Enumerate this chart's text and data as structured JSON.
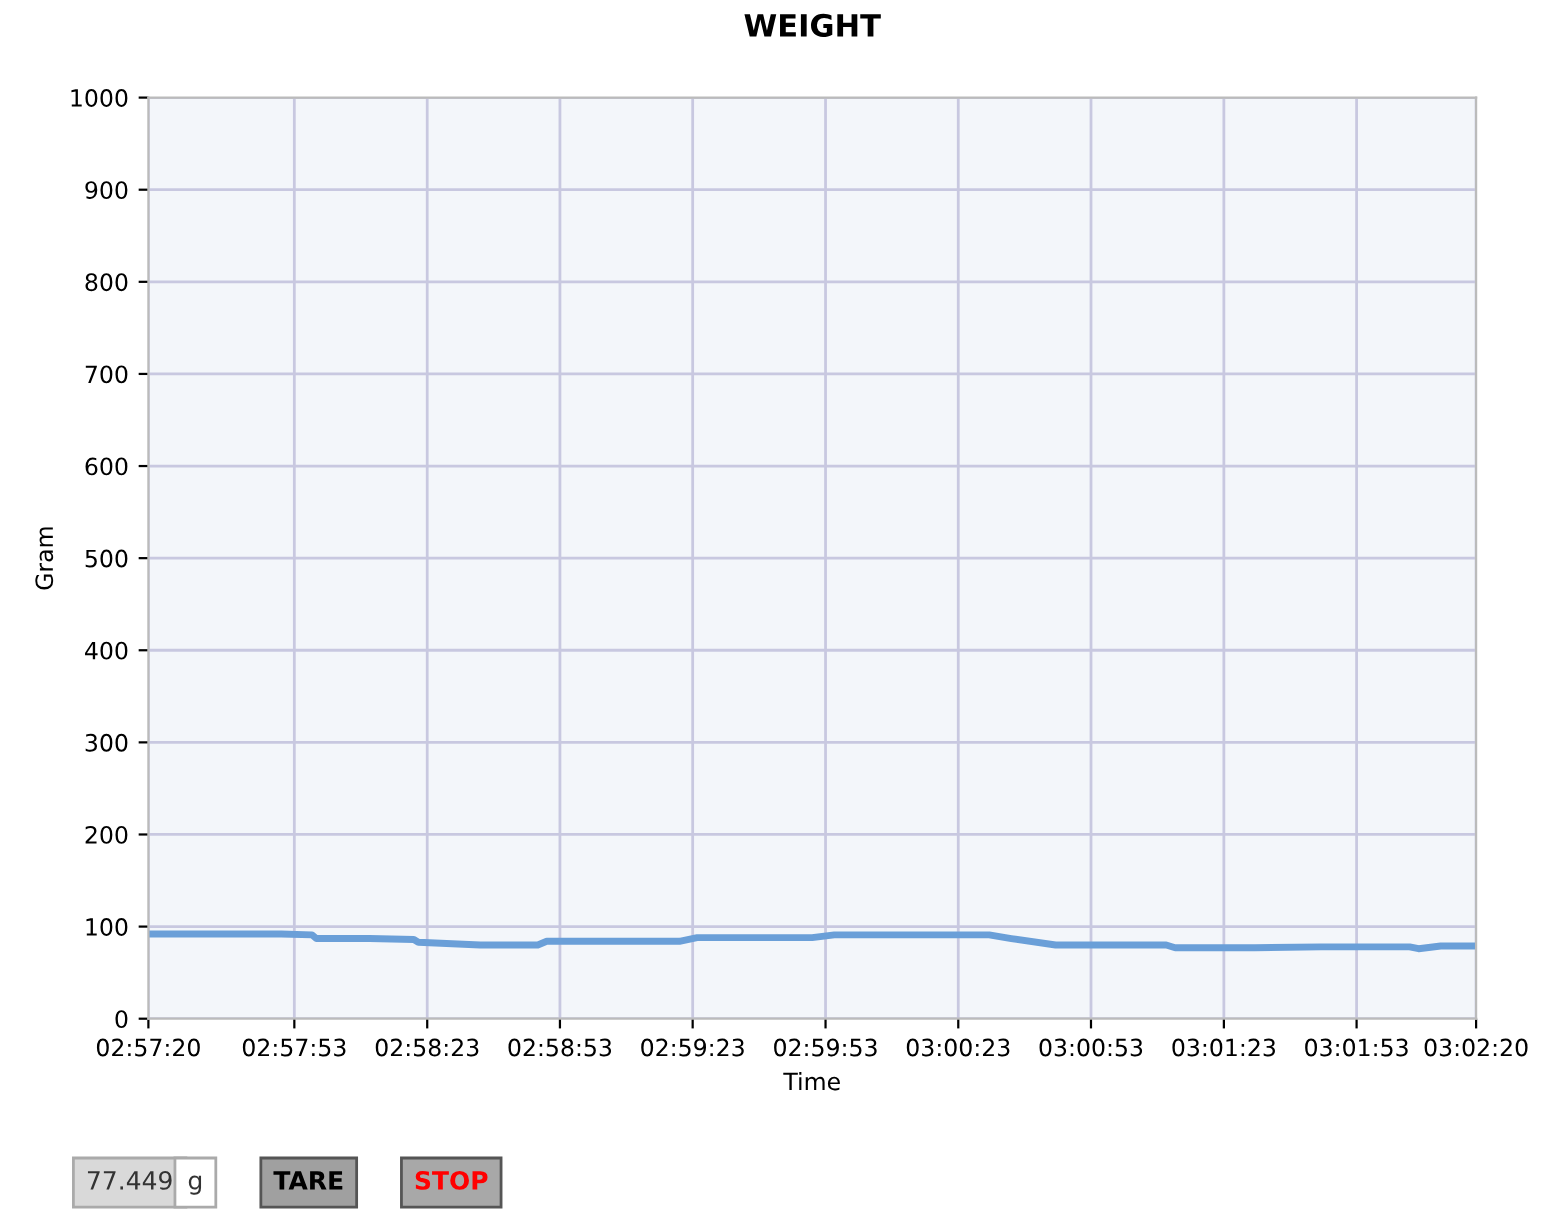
{
  "chart_data": {
    "type": "line",
    "title": "WEIGHT",
    "xlabel": "Time",
    "ylabel": "Gram",
    "x": [
      2.95556,
      2.95972,
      2.96389,
      2.96583,
      2.96611,
      2.96944,
      2.97222,
      2.9725,
      2.97639,
      2.98,
      2.98056,
      2.98889,
      2.99,
      2.99722,
      2.99861,
      3.00833,
      3.00972,
      3.0125,
      3.01944,
      3.02,
      3.025,
      3.02917,
      3.03472,
      3.03528,
      3.03667,
      3.03889
    ],
    "series": [
      {
        "color": "#6a9fd8",
        "values": [
          92,
          92,
          92,
          91,
          87,
          87,
          86,
          83,
          80,
          80,
          84,
          84,
          88,
          88,
          91,
          91,
          87,
          80,
          80,
          77,
          77,
          78,
          78,
          76,
          79,
          79
        ]
      }
    ],
    "xlim": [
      2.95556,
      3.03889
    ],
    "xticks": [
      {
        "value": 2.95556,
        "label": "02:57:20"
      },
      {
        "value": 2.96472,
        "label": "02:57:53"
      },
      {
        "value": 2.97306,
        "label": "02:58:23"
      },
      {
        "value": 2.98139,
        "label": "02:58:53"
      },
      {
        "value": 2.98972,
        "label": "02:59:23"
      },
      {
        "value": 2.99806,
        "label": "02:59:53"
      },
      {
        "value": 3.00639,
        "label": "03:00:23"
      },
      {
        "value": 3.01472,
        "label": "03:00:53"
      },
      {
        "value": 3.02306,
        "label": "03:01:23"
      },
      {
        "value": 3.03139,
        "label": "03:01:53"
      },
      {
        "value": 3.03889,
        "label": "03:02:20"
      }
    ],
    "ylim": [
      0,
      1000
    ],
    "yticks": [
      0,
      100,
      200,
      300,
      400,
      500,
      600,
      700,
      800,
      900,
      1000
    ],
    "grid": true,
    "legend": false,
    "marker": "none",
    "line_style": "solid",
    "annotations": [
      "77.449",
      "g",
      "TARE",
      "STOP"
    ]
  }
}
